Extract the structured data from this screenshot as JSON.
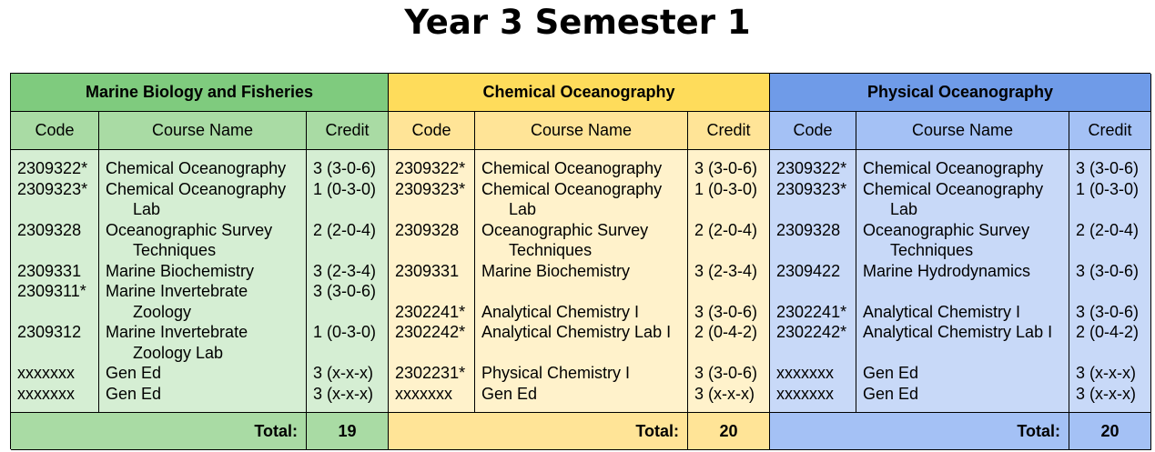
{
  "title": "Year 3 Semester 1",
  "headers": {
    "code": "Code",
    "name": "Course Name",
    "credit": "Credit"
  },
  "total_label": "Total:",
  "programs": [
    {
      "name": "Marine Biology and Fisheries",
      "color": "#7fcb7e",
      "total": "19",
      "rows": [
        {
          "code": "2309322*",
          "name": [
            "Chemical Oceanography"
          ],
          "credit": "3 (3-0-6)"
        },
        {
          "code": "2309323*",
          "name": [
            "Chemical Oceanography",
            "Lab"
          ],
          "credit": "1 (0-3-0)"
        },
        {
          "code": "2309328",
          "name": [
            "Oceanographic Survey",
            "Techniques"
          ],
          "credit": "2 (2-0-4)"
        },
        {
          "code": "2309331",
          "name": [
            "Marine Biochemistry"
          ],
          "credit": "3 (2-3-4)"
        },
        {
          "code": "2309311*",
          "name": [
            "Marine Invertebrate",
            "Zoology"
          ],
          "credit": "3 (3-0-6)"
        },
        {
          "code": "2309312",
          "name": [
            "Marine Invertebrate",
            "Zoology Lab"
          ],
          "credit": "1 (0-3-0)"
        },
        {
          "code": "xxxxxxx",
          "name": [
            "Gen Ed"
          ],
          "credit": "3 (x-x-x)"
        },
        {
          "code": "xxxxxxx",
          "name": [
            "Gen Ed"
          ],
          "credit": "3 (x-x-x)"
        }
      ]
    },
    {
      "name": "Chemical Oceanography",
      "color": "#fedc5b",
      "total": "20",
      "rows": [
        {
          "code": "2309322*",
          "name": [
            "Chemical Oceanography"
          ],
          "credit": "3 (3-0-6)"
        },
        {
          "code": "2309323*",
          "name": [
            "Chemical Oceanography",
            "Lab"
          ],
          "credit": "1 (0-3-0)"
        },
        {
          "code": "2309328",
          "name": [
            "Oceanographic Survey",
            "Techniques"
          ],
          "credit": "2 (2-0-4)"
        },
        {
          "code": "2309331",
          "name": [
            "Marine Biochemistry"
          ],
          "credit": "3 (2-3-4)"
        },
        {
          "code": "",
          "name": [],
          "credit": ""
        },
        {
          "code": "2302241*",
          "name": [
            "Analytical Chemistry I"
          ],
          "credit": "3 (3-0-6)"
        },
        {
          "code": "2302242*",
          "name": [
            "Analytical Chemistry Lab I"
          ],
          "credit": "2 (0-4-2)"
        },
        {
          "code": "",
          "name": [],
          "credit": ""
        },
        {
          "code": "2302231*",
          "name": [
            "Physical Chemistry I"
          ],
          "credit": "3 (3-0-6)"
        },
        {
          "code": "xxxxxxx",
          "name": [
            "Gen Ed"
          ],
          "credit": "3 (x-x-x)"
        }
      ]
    },
    {
      "name": "Physical Oceanography",
      "color": "#6f9be8",
      "total": "20",
      "rows": [
        {
          "code": "2309322*",
          "name": [
            "Chemical Oceanography"
          ],
          "credit": "3 (3-0-6)"
        },
        {
          "code": "2309323*",
          "name": [
            "Chemical Oceanography",
            "Lab"
          ],
          "credit": "1 (0-3-0)"
        },
        {
          "code": "2309328",
          "name": [
            "Oceanographic Survey",
            "Techniques"
          ],
          "credit": "2 (2-0-4)"
        },
        {
          "code": "2309422",
          "name": [
            "Marine Hydrodynamics"
          ],
          "credit": "3 (3-0-6)"
        },
        {
          "code": "",
          "name": [],
          "credit": ""
        },
        {
          "code": "2302241*",
          "name": [
            "Analytical Chemistry I"
          ],
          "credit": "3 (3-0-6)"
        },
        {
          "code": "2302242*",
          "name": [
            "Analytical Chemistry Lab I"
          ],
          "credit": "2 (0-4-2)"
        },
        {
          "code": "",
          "name": [],
          "credit": ""
        },
        {
          "code": "xxxxxxx",
          "name": [
            "Gen Ed"
          ],
          "credit": "3 (x-x-x)"
        },
        {
          "code": "xxxxxxx",
          "name": [
            "Gen Ed"
          ],
          "credit": "3 (x-x-x)"
        }
      ]
    }
  ]
}
